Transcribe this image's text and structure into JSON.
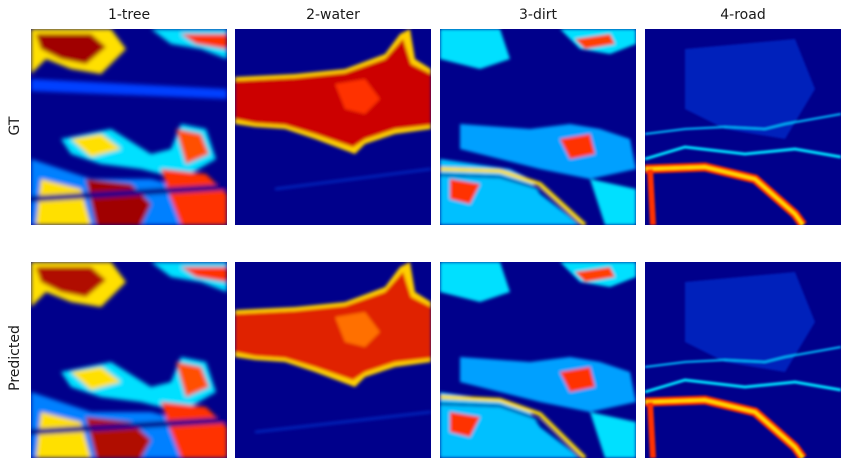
{
  "columns": [
    {
      "label": "1-tree"
    },
    {
      "label": "2-water"
    },
    {
      "label": "3-dirt"
    },
    {
      "label": "4-road"
    }
  ],
  "rows": [
    {
      "label": "GT"
    },
    {
      "label": "Predicted"
    }
  ],
  "colormap": "jet",
  "colors": {
    "low": "#00008b",
    "mid_low": "#0050ff",
    "mid": "#00e0ff",
    "mid_high": "#ffe000",
    "high": "#ff2000",
    "max": "#8b0000"
  }
}
